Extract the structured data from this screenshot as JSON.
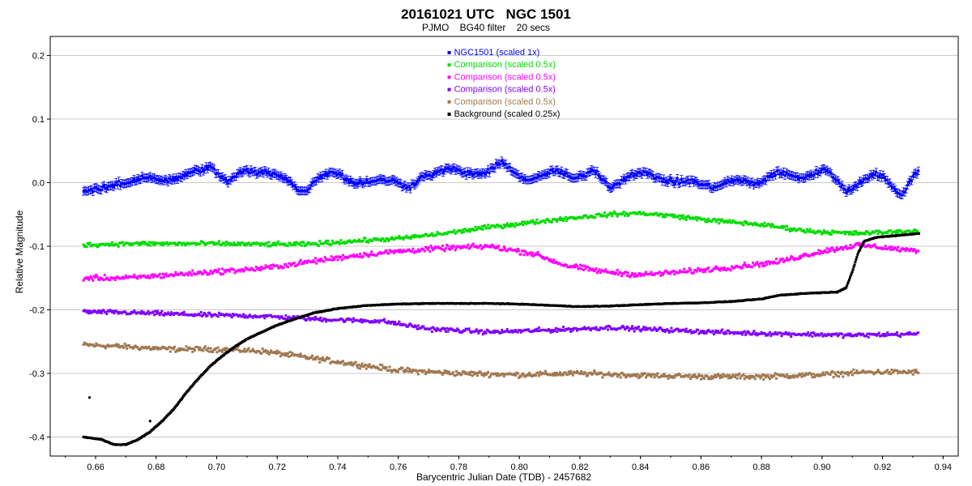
{
  "header": {
    "title": "20161021 UTC   NGC 1501",
    "subtitle": "PJMO    BG40 filter    20 secs"
  },
  "chart_data": {
    "type": "scatter",
    "title": "20161021 UTC   NGC 1501",
    "subtitle": "PJMO    BG40 filter    20 secs",
    "xlabel": "Barycentric Julian Date (TDB) - 2457682",
    "ylabel": "Relative Magnitude",
    "xlim": [
      0.645,
      0.945
    ],
    "ylim": [
      -0.43,
      0.23
    ],
    "x_ticks": [
      "0.66",
      "0.68",
      "0.70",
      "0.72",
      "0.74",
      "0.76",
      "0.78",
      "0.80",
      "0.82",
      "0.84",
      "0.86",
      "0.88",
      "0.90",
      "0.92",
      "0.94"
    ],
    "y_ticks": [
      "0.2",
      "0.1",
      "0.0",
      "-0.1",
      "-0.2",
      "-0.3",
      "-0.4"
    ],
    "grid": "horizontal",
    "legend_position": "top-center",
    "series": [
      {
        "name": "NGC1501  (scaled 1x)",
        "color": "#0000ff",
        "error_bars": true,
        "points": [
          [
            0.656,
            -0.01
          ],
          [
            0.662,
            -0.015
          ],
          [
            0.668,
            0.002
          ],
          [
            0.674,
            0.005
          ],
          [
            0.68,
            0.005
          ],
          [
            0.686,
            0.008
          ],
          [
            0.692,
            0.012
          ],
          [
            0.698,
            0.028
          ],
          [
            0.704,
            0.0
          ],
          [
            0.71,
            0.018
          ],
          [
            0.716,
            0.02
          ],
          [
            0.722,
            0.005
          ],
          [
            0.728,
            -0.012
          ],
          [
            0.734,
            0.008
          ],
          [
            0.74,
            0.015
          ],
          [
            0.746,
            0.002
          ],
          [
            0.752,
            -0.002
          ],
          [
            0.758,
            0.008
          ],
          [
            0.764,
            -0.008
          ],
          [
            0.77,
            0.012
          ],
          [
            0.776,
            0.026
          ],
          [
            0.782,
            0.01
          ],
          [
            0.788,
            0.018
          ],
          [
            0.794,
            0.03
          ],
          [
            0.8,
            0.008
          ],
          [
            0.806,
            0.01
          ],
          [
            0.812,
            0.015
          ],
          [
            0.818,
            0.01
          ],
          [
            0.824,
            0.018
          ],
          [
            0.83,
            -0.008
          ],
          [
            0.836,
            0.015
          ],
          [
            0.842,
            0.01
          ],
          [
            0.848,
            0.008
          ],
          [
            0.854,
            0.0
          ],
          [
            0.86,
            -0.003
          ],
          [
            0.866,
            -0.002
          ],
          [
            0.872,
            0.0
          ],
          [
            0.878,
            0.002
          ],
          [
            0.884,
            0.012
          ],
          [
            0.89,
            0.01
          ],
          [
            0.896,
            0.014
          ],
          [
            0.902,
            0.016
          ],
          [
            0.908,
            -0.01
          ],
          [
            0.914,
            0.004
          ],
          [
            0.92,
            0.012
          ],
          [
            0.926,
            -0.018
          ],
          [
            0.932,
            0.016
          ]
        ]
      },
      {
        "name": "Comparison  (scaled 0.5x)",
        "color": "#00dd00",
        "points": [
          [
            0.656,
            -0.098
          ],
          [
            0.67,
            -0.096
          ],
          [
            0.685,
            -0.096
          ],
          [
            0.7,
            -0.096
          ],
          [
            0.715,
            -0.097
          ],
          [
            0.73,
            -0.097
          ],
          [
            0.745,
            -0.092
          ],
          [
            0.76,
            -0.088
          ],
          [
            0.775,
            -0.08
          ],
          [
            0.79,
            -0.07
          ],
          [
            0.805,
            -0.062
          ],
          [
            0.818,
            -0.055
          ],
          [
            0.83,
            -0.05
          ],
          [
            0.84,
            -0.048
          ],
          [
            0.85,
            -0.052
          ],
          [
            0.865,
            -0.06
          ],
          [
            0.88,
            -0.066
          ],
          [
            0.895,
            -0.076
          ],
          [
            0.91,
            -0.08
          ],
          [
            0.932,
            -0.076
          ]
        ]
      },
      {
        "name": "Comparison  (scaled 0.5x)",
        "color": "#ff00ff",
        "points": [
          [
            0.656,
            -0.15
          ],
          [
            0.67,
            -0.15
          ],
          [
            0.685,
            -0.145
          ],
          [
            0.7,
            -0.14
          ],
          [
            0.715,
            -0.135
          ],
          [
            0.73,
            -0.125
          ],
          [
            0.745,
            -0.115
          ],
          [
            0.76,
            -0.108
          ],
          [
            0.775,
            -0.103
          ],
          [
            0.79,
            -0.1
          ],
          [
            0.805,
            -0.112
          ],
          [
            0.815,
            -0.13
          ],
          [
            0.828,
            -0.14
          ],
          [
            0.84,
            -0.145
          ],
          [
            0.855,
            -0.14
          ],
          [
            0.87,
            -0.133
          ],
          [
            0.885,
            -0.125
          ],
          [
            0.9,
            -0.108
          ],
          [
            0.912,
            -0.098
          ],
          [
            0.932,
            -0.108
          ]
        ]
      },
      {
        "name": "Comparison  (scaled 0.5x)",
        "color": "#8000ff",
        "points": [
          [
            0.656,
            -0.203
          ],
          [
            0.675,
            -0.205
          ],
          [
            0.695,
            -0.208
          ],
          [
            0.715,
            -0.21
          ],
          [
            0.735,
            -0.215
          ],
          [
            0.755,
            -0.218
          ],
          [
            0.77,
            -0.23
          ],
          [
            0.79,
            -0.235
          ],
          [
            0.81,
            -0.232
          ],
          [
            0.83,
            -0.228
          ],
          [
            0.85,
            -0.232
          ],
          [
            0.87,
            -0.236
          ],
          [
            0.89,
            -0.238
          ],
          [
            0.91,
            -0.24
          ],
          [
            0.932,
            -0.238
          ]
        ]
      },
      {
        "name": "Comparison  (scaled 0.5x)",
        "color": "#a07850",
        "points": [
          [
            0.656,
            -0.255
          ],
          [
            0.67,
            -0.258
          ],
          [
            0.685,
            -0.262
          ],
          [
            0.7,
            -0.262
          ],
          [
            0.715,
            -0.265
          ],
          [
            0.73,
            -0.275
          ],
          [
            0.745,
            -0.285
          ],
          [
            0.76,
            -0.295
          ],
          [
            0.78,
            -0.3
          ],
          [
            0.8,
            -0.302
          ],
          [
            0.82,
            -0.3
          ],
          [
            0.84,
            -0.303
          ],
          [
            0.86,
            -0.305
          ],
          [
            0.88,
            -0.305
          ],
          [
            0.9,
            -0.302
          ],
          [
            0.915,
            -0.298
          ],
          [
            0.932,
            -0.298
          ]
        ]
      },
      {
        "name": "Background  (scaled 0.25x)",
        "color": "#000000",
        "points": [
          [
            0.656,
            -0.4
          ],
          [
            0.662,
            -0.404
          ],
          [
            0.666,
            -0.412
          ],
          [
            0.67,
            -0.412
          ],
          [
            0.674,
            -0.404
          ],
          [
            0.678,
            -0.392
          ],
          [
            0.682,
            -0.375
          ],
          [
            0.686,
            -0.355
          ],
          [
            0.69,
            -0.33
          ],
          [
            0.694,
            -0.308
          ],
          [
            0.698,
            -0.288
          ],
          [
            0.702,
            -0.272
          ],
          [
            0.706,
            -0.258
          ],
          [
            0.71,
            -0.246
          ],
          [
            0.715,
            -0.235
          ],
          [
            0.72,
            -0.224
          ],
          [
            0.726,
            -0.214
          ],
          [
            0.732,
            -0.205
          ],
          [
            0.74,
            -0.198
          ],
          [
            0.75,
            -0.193
          ],
          [
            0.76,
            -0.191
          ],
          [
            0.77,
            -0.19
          ],
          [
            0.78,
            -0.19
          ],
          [
            0.79,
            -0.19
          ],
          [
            0.8,
            -0.191
          ],
          [
            0.81,
            -0.193
          ],
          [
            0.82,
            -0.195
          ],
          [
            0.83,
            -0.194
          ],
          [
            0.84,
            -0.192
          ],
          [
            0.85,
            -0.19
          ],
          [
            0.86,
            -0.189
          ],
          [
            0.87,
            -0.187
          ],
          [
            0.88,
            -0.183
          ],
          [
            0.886,
            -0.177
          ],
          [
            0.895,
            -0.174
          ],
          [
            0.905,
            -0.172
          ],
          [
            0.908,
            -0.165
          ],
          [
            0.91,
            -0.14
          ],
          [
            0.912,
            -0.11
          ],
          [
            0.914,
            -0.092
          ],
          [
            0.918,
            -0.086
          ],
          [
            0.925,
            -0.083
          ],
          [
            0.932,
            -0.08
          ]
        ],
        "outliers": [
          [
            0.658,
            -0.338
          ],
          [
            0.678,
            -0.375
          ]
        ]
      }
    ]
  }
}
